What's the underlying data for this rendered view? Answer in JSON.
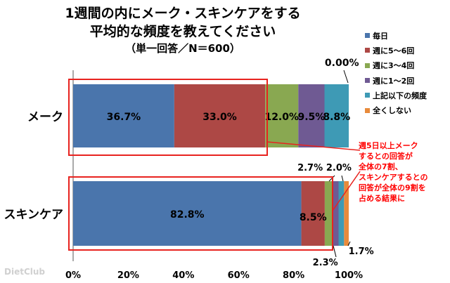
{
  "titles": {
    "line1": "1週間の内にメーク・スキンケアをする",
    "line2": "平均的な頻度を教えてください",
    "line3": "（単一回答／N＝600）"
  },
  "chart_data": {
    "type": "bar",
    "orientation": "horizontal",
    "stacked": true,
    "categories": [
      "メーク",
      "スキンケア"
    ],
    "series": [
      {
        "name": "毎日",
        "color": "#4a75ac",
        "values": [
          36.7,
          82.8
        ]
      },
      {
        "name": "週に5～6回",
        "color": "#ad4845",
        "values": [
          33.0,
          8.5
        ]
      },
      {
        "name": "週に3～4回",
        "color": "#89a851",
        "values": [
          12.0,
          2.7
        ]
      },
      {
        "name": "週に1～2回",
        "color": "#6f5a93",
        "values": [
          9.5,
          2.3
        ]
      },
      {
        "name": "上記以下の頻度",
        "color": "#3e9ab5",
        "values": [
          8.8,
          2.0
        ]
      },
      {
        "name": "全くしない",
        "color": "#e88a3b",
        "values": [
          0.0,
          1.7
        ]
      }
    ],
    "xlim": [
      0,
      100
    ],
    "x_ticks": [
      "0%",
      "20%",
      "40%",
      "60%",
      "80%",
      "100%"
    ],
    "grid": false,
    "legend_position": "right",
    "data_labels": [
      "36.7%",
      "33.0%",
      "12.0%",
      "9.5%",
      "8.8%",
      "0.00%",
      "82.8%",
      "8.5%",
      "2.7%",
      "2.3%",
      "2.0%",
      "1.7%"
    ]
  },
  "annotation": {
    "lines": [
      "週5日以上メーク",
      "するとの回答が",
      "全体の7割、",
      "スキンケアするとの",
      "回答が全体の9割を",
      "占める結果に"
    ]
  },
  "watermark": "DietClub"
}
